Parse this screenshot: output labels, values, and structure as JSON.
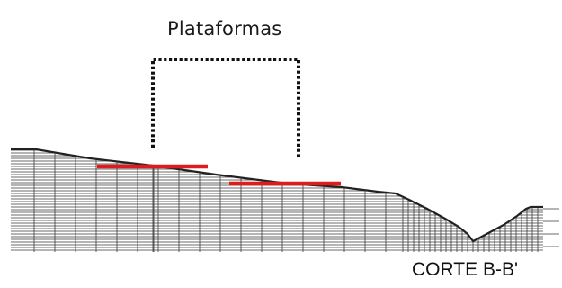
{
  "diagram": {
    "title": "Plataformas",
    "section_label": "CORTE B-B'"
  },
  "colors": {
    "terrain_line": "#222222",
    "hatch": "#3a3a3a",
    "platform": "#e01b1b",
    "outline": "#111111"
  }
}
